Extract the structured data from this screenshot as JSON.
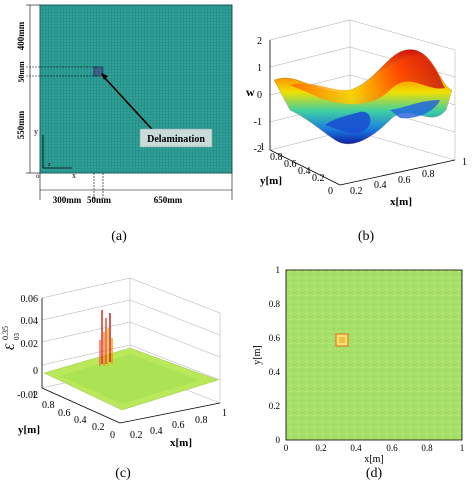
{
  "panels": {
    "a": {
      "caption": "(a)",
      "dims_left": [
        "400mm",
        "50mm",
        "550mm"
      ],
      "dims_bottom": [
        "300mm",
        "50mm",
        "650mm"
      ],
      "label": "Delamination",
      "axis_y": "y",
      "axis_x": "x",
      "axis_z": "z",
      "origin": "o",
      "colors": {
        "plate": "#2e9f96",
        "grid": "#1d7a74",
        "defect": "#3c5f86"
      }
    },
    "b": {
      "caption": "(b)",
      "zlabel": "w",
      "xlabel": "x[m]",
      "ylabel": "y[m]",
      "z_ticks": [
        "2",
        "1",
        "0",
        "-1",
        "-2"
      ],
      "x_ticks": [
        "0",
        "0.2",
        "0.4",
        "0.6",
        "0.8",
        "1"
      ],
      "y_ticks": [
        "0",
        "0.2",
        "0.4",
        "0.6",
        "0.8",
        "1"
      ]
    },
    "c": {
      "caption": "(c)",
      "zlabel": "Ɛ⁰·³⁵",
      "zlabel_main": "Ɛ",
      "zlabel_sup": "0.35",
      "zlabel_sub": "03",
      "xlabel": "x[m]",
      "ylabel": "y[m]",
      "z_ticks": [
        "0.06",
        "0.04",
        "0.02",
        "0",
        "-0.02"
      ],
      "x_ticks": [
        "0",
        "0.2",
        "0.4",
        "0.6",
        "0.8",
        "1"
      ],
      "y_ticks": [
        "0",
        "0.2",
        "0.4",
        "0.6",
        "0.8",
        "1"
      ]
    },
    "d": {
      "caption": "(d)",
      "xlabel": "x[m]",
      "ylabel": "y[m]",
      "x_ticks": [
        "0",
        "0.2",
        "0.4",
        "0.6",
        "0.8",
        "1"
      ],
      "y_ticks": [
        "0",
        "0.2",
        "0.4",
        "0.6",
        "0.8",
        "1"
      ],
      "colors": {
        "field": "#a6e06a",
        "spot": "#e8a030"
      }
    }
  }
}
